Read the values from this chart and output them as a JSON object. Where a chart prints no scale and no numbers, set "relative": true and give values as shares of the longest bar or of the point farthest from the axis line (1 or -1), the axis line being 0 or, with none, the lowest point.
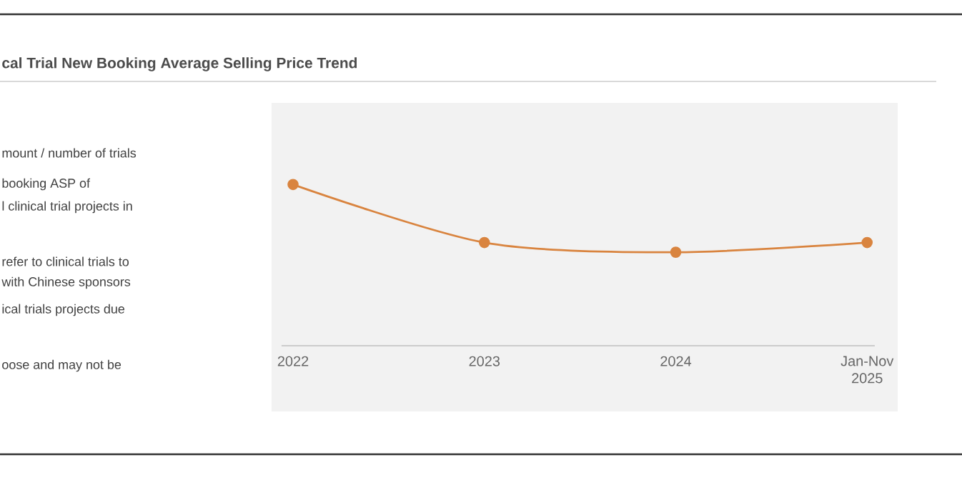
{
  "chart_data": {
    "type": "line",
    "title": "cal Trial New Booking Average Selling Price Trend",
    "categories": [
      "2022",
      "2023",
      "2024",
      "Jan-Nov 2025"
    ],
    "relative": true,
    "series": [
      {
        "color": "#d9843f",
        "values": [
          1,
          0.64,
          0.58,
          0.64
        ]
      }
    ],
    "marker": "circle",
    "grid": false,
    "annotations": [
      "mount / number of trials",
      "booking ASP of",
      "l clinical trial projects in",
      "refer to clinical trials to",
      "with Chinese sponsors",
      "ical trials projects due",
      "oose and may not be"
    ]
  }
}
